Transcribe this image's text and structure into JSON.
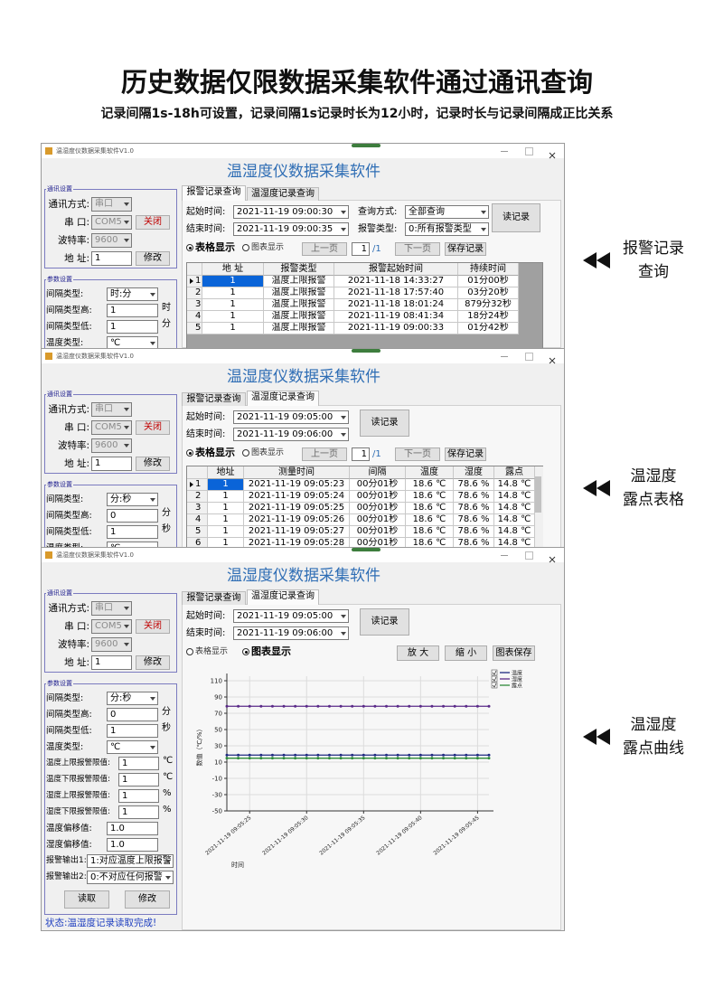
{
  "header": {
    "title": "历史数据仅限数据采集软件通过通讯查询",
    "subtitle": "记录间隔1s-18h可设置，记录间隔1s记录时长为12小时，记录时长与记录间隔成正比关系"
  },
  "side_labels": [
    [
      "报警记录",
      "查询"
    ],
    [
      "温湿度",
      "露点表格"
    ],
    [
      "温湿度",
      "露点曲线"
    ]
  ],
  "windows": [
    {
      "title_bar": "温湿度仪数据采集软件V1.0",
      "app_title": "温湿度仪数据采集软件",
      "comm_group": "通讯设置",
      "comm": [
        {
          "label": "通讯方式:",
          "value": "串口",
          "kind": "select-disabled"
        },
        {
          "label": "串 口:",
          "value": "COM5",
          "kind": "select-disabled",
          "button": "关闭"
        },
        {
          "label": "波特率:",
          "value": "9600",
          "kind": "select-disabled"
        },
        {
          "label": "地 址:",
          "value": "1",
          "kind": "input",
          "button": "修改"
        }
      ],
      "param_group": "参数设置",
      "params": [
        {
          "label": "间隔类型:",
          "value": "时:分",
          "kind": "select"
        },
        {
          "label": "间隔类型高:",
          "value": "1",
          "kind": "input",
          "unit": "时"
        },
        {
          "label": "间隔类型低:",
          "value": "1",
          "kind": "input",
          "unit": "分"
        },
        {
          "label": "温度类型:",
          "value": "℃",
          "kind": "select"
        }
      ],
      "tabs": [
        "报警记录查询",
        "温湿度记录查询"
      ],
      "active_tab": 0,
      "query": [
        {
          "label": "起始时间:",
          "value": "2021-11-19 09:00:30"
        },
        {
          "label": "结束时间:",
          "value": "2021-11-19 09:00:35"
        },
        {
          "label": "查询方式:",
          "value": "全部查询"
        },
        {
          "label": "报警类型:",
          "value": "0:所有报警类型"
        }
      ],
      "read_button": "读记录",
      "view_options": [
        "表格显示",
        "图表显示"
      ],
      "selected_view": 0,
      "pager": {
        "prev": "上一页",
        "page": "1",
        "total": "/1",
        "next": "下一页",
        "save": "保存记录"
      },
      "table": {
        "columns": [
          "地 址",
          "报警类型",
          "报警起始时间",
          "持续时间"
        ],
        "row_labels": [
          "1",
          "2",
          "3",
          "4",
          "5"
        ],
        "rows": [
          [
            "1",
            "温度上限报警",
            "2021-11-18 14:33:27",
            "01分00秒"
          ],
          [
            "1",
            "温度上限报警",
            "2021-11-18 17:57:40",
            "03分20秒"
          ],
          [
            "1",
            "温度上限报警",
            "2021-11-18 18:01:24",
            "879分32秒"
          ],
          [
            "1",
            "温度上限报警",
            "2021-11-19 08:41:34",
            "18分24秒"
          ],
          [
            "1",
            "温度上限报警",
            "2021-11-19 09:00:33",
            "01分42秒"
          ]
        ]
      }
    },
    {
      "title_bar": "温湿度仪数据采集软件V1.0",
      "app_title": "温湿度仪数据采集软件",
      "comm_group": "通讯设置",
      "comm": [
        {
          "label": "通讯方式:",
          "value": "串口",
          "kind": "select-disabled"
        },
        {
          "label": "串 口:",
          "value": "COM5",
          "kind": "select-disabled",
          "button": "关闭"
        },
        {
          "label": "波特率:",
          "value": "9600",
          "kind": "select-disabled"
        },
        {
          "label": "地 址:",
          "value": "1",
          "kind": "input",
          "button": "修改"
        }
      ],
      "param_group": "参数设置",
      "params": [
        {
          "label": "间隔类型:",
          "value": "分:秒",
          "kind": "select"
        },
        {
          "label": "间隔类型高:",
          "value": "0",
          "kind": "input",
          "unit": "分"
        },
        {
          "label": "间隔类型低:",
          "value": "1",
          "kind": "input",
          "unit": "秒"
        },
        {
          "label": "温度类型:",
          "value": "℃",
          "kind": "select"
        }
      ],
      "tabs": [
        "报警记录查询",
        "温湿度记录查询"
      ],
      "active_tab": 1,
      "query": [
        {
          "label": "起始时间:",
          "value": "2021-11-19 09:05:00"
        },
        {
          "label": "结束时间:",
          "value": "2021-11-19 09:06:00"
        }
      ],
      "read_button": "读记录",
      "view_options": [
        "表格显示",
        "图表显示"
      ],
      "selected_view": 0,
      "pager": {
        "prev": "上一页",
        "page": "1",
        "total": "/1",
        "next": "下一页",
        "save": "保存记录"
      },
      "table": {
        "columns": [
          "地址",
          "测量时间",
          "间隔",
          "温度",
          "湿度",
          "露点"
        ],
        "row_labels": [
          "1",
          "2",
          "3",
          "4",
          "5",
          "6"
        ],
        "rows": [
          [
            "1",
            "2021-11-19 09:05:23",
            "00分01秒",
            "18.6 ℃",
            "78.6 %",
            "14.8 ℃"
          ],
          [
            "1",
            "2021-11-19 09:05:24",
            "00分01秒",
            "18.6 ℃",
            "78.6 %",
            "14.8 ℃"
          ],
          [
            "1",
            "2021-11-19 09:05:25",
            "00分01秒",
            "18.6 ℃",
            "78.6 %",
            "14.8 ℃"
          ],
          [
            "1",
            "2021-11-19 09:05:26",
            "00分01秒",
            "18.6 ℃",
            "78.6 %",
            "14.8 ℃"
          ],
          [
            "1",
            "2021-11-19 09:05:27",
            "00分01秒",
            "18.6 ℃",
            "78.6 %",
            "14.8 ℃"
          ],
          [
            "1",
            "2021-11-19 09:05:28",
            "00分01秒",
            "18.6 ℃",
            "78.6 %",
            "14.8 ℃"
          ]
        ]
      }
    },
    {
      "title_bar": "温湿度仪数据采集软件V1.0",
      "app_title": "温湿度仪数据采集软件",
      "comm_group": "通讯设置",
      "comm": [
        {
          "label": "通讯方式:",
          "value": "串口",
          "kind": "select-disabled"
        },
        {
          "label": "串 口:",
          "value": "COM5",
          "kind": "select-disabled",
          "button": "关闭"
        },
        {
          "label": "波特率:",
          "value": "9600",
          "kind": "select-disabled"
        },
        {
          "label": "地 址:",
          "value": "1",
          "kind": "input",
          "button": "修改"
        }
      ],
      "param_group": "参数设置",
      "params": [
        {
          "label": "间隔类型:",
          "value": "分:秒",
          "kind": "select"
        },
        {
          "label": "间隔类型高:",
          "value": "0",
          "kind": "input",
          "unit": "分"
        },
        {
          "label": "间隔类型低:",
          "value": "1",
          "kind": "input",
          "unit": "秒"
        },
        {
          "label": "温度类型:",
          "value": "℃",
          "kind": "select"
        },
        {
          "label": "温度上限报警限值:",
          "value": "1",
          "kind": "input",
          "unit": "℃"
        },
        {
          "label": "温度下限报警限值:",
          "value": "1",
          "kind": "input",
          "unit": "℃"
        },
        {
          "label": "湿度上限报警限值:",
          "value": "1",
          "kind": "input",
          "unit": "%"
        },
        {
          "label": "湿度下限报警限值:",
          "value": "1",
          "kind": "input",
          "unit": "%"
        },
        {
          "label": "温度偏移值:",
          "value": "1.0",
          "kind": "input"
        },
        {
          "label": "湿度偏移值:",
          "value": "1.0",
          "kind": "input"
        },
        {
          "label": "报警输出1:",
          "value": "1:对应温度上限报警",
          "kind": "select-wide"
        },
        {
          "label": "报警输出2:",
          "value": "0:不对应任何报警",
          "kind": "select-wide"
        }
      ],
      "actions": [
        "读取",
        "修改"
      ],
      "status": "状态:温湿度记录读取完成!",
      "tabs": [
        "报警记录查询",
        "温湿度记录查询"
      ],
      "active_tab": 1,
      "query": [
        {
          "label": "起始时间:",
          "value": "2021-11-19 09:05:00"
        },
        {
          "label": "结束时间:",
          "value": "2021-11-19 09:06:00"
        }
      ],
      "read_button": "读记录",
      "view_options": [
        "表格显示",
        "图表显示"
      ],
      "selected_view": 1,
      "chart_buttons": [
        "放 大",
        "缩 小",
        "图表保存"
      ],
      "chart": {
        "type": "line",
        "y_label": "数值（℃/%）",
        "x_label": "时间",
        "x": [
          "2021-11-19 09:05:23",
          "2021-11-19 09:05:24",
          "2021-11-19 09:05:25",
          "2021-11-19 09:05:26",
          "2021-11-19 09:05:27",
          "2021-11-19 09:05:28",
          "2021-11-19 09:05:29",
          "2021-11-19 09:05:30",
          "2021-11-19 09:05:31",
          "2021-11-19 09:05:32",
          "2021-11-19 09:05:33",
          "2021-11-19 09:05:34",
          "2021-11-19 09:05:35",
          "2021-11-19 09:05:36",
          "2021-11-19 09:05:37",
          "2021-11-19 09:05:38",
          "2021-11-19 09:05:39",
          "2021-11-19 09:05:40",
          "2021-11-19 09:05:41",
          "2021-11-19 09:05:42",
          "2021-11-19 09:05:43",
          "2021-11-19 09:05:44",
          "2021-11-19 09:05:45",
          "2021-11-19 09:05:46"
        ],
        "series": [
          {
            "name": "温度",
            "color": "#1f2a80",
            "values": [
              18.6,
              18.6,
              18.6,
              18.6,
              18.6,
              18.6,
              18.6,
              18.6,
              18.6,
              18.6,
              18.6,
              18.6,
              18.6,
              18.6,
              18.6,
              18.6,
              18.6,
              18.6,
              18.6,
              18.6,
              18.6,
              18.6,
              18.6,
              18.6
            ]
          },
          {
            "name": "湿度",
            "color": "#5a2a88",
            "values": [
              78.6,
              78.6,
              78.6,
              78.6,
              78.6,
              78.6,
              78.6,
              78.6,
              78.6,
              78.6,
              78.6,
              78.6,
              78.6,
              78.6,
              78.6,
              78.6,
              78.6,
              78.6,
              78.6,
              78.6,
              78.6,
              78.6,
              78.6,
              78.6
            ]
          },
          {
            "name": "露点",
            "color": "#2e8b3a",
            "values": [
              14.8,
              14.8,
              14.8,
              14.8,
              14.8,
              14.8,
              14.8,
              14.8,
              14.8,
              14.8,
              14.8,
              14.8,
              14.8,
              14.8,
              14.8,
              14.8,
              14.8,
              14.8,
              14.8,
              14.8,
              14.8,
              14.8,
              14.8,
              14.8
            ]
          }
        ],
        "xlim": [
          "2021-11-19 09:05:23",
          "2021-11-19 09:05:46"
        ],
        "xticks": [
          "2021-11-19 09:05:25",
          "2021-11-19 09:05:30",
          "2021-11-19 09:05:35",
          "2021-11-19 09:05:40",
          "2021-11-19 09:05:45"
        ],
        "ylim": [
          -50,
          110
        ],
        "yticks": [
          -50,
          -30,
          -10,
          10,
          30,
          50,
          70,
          90,
          110
        ],
        "grid": true,
        "legend": "upper right"
      }
    }
  ]
}
